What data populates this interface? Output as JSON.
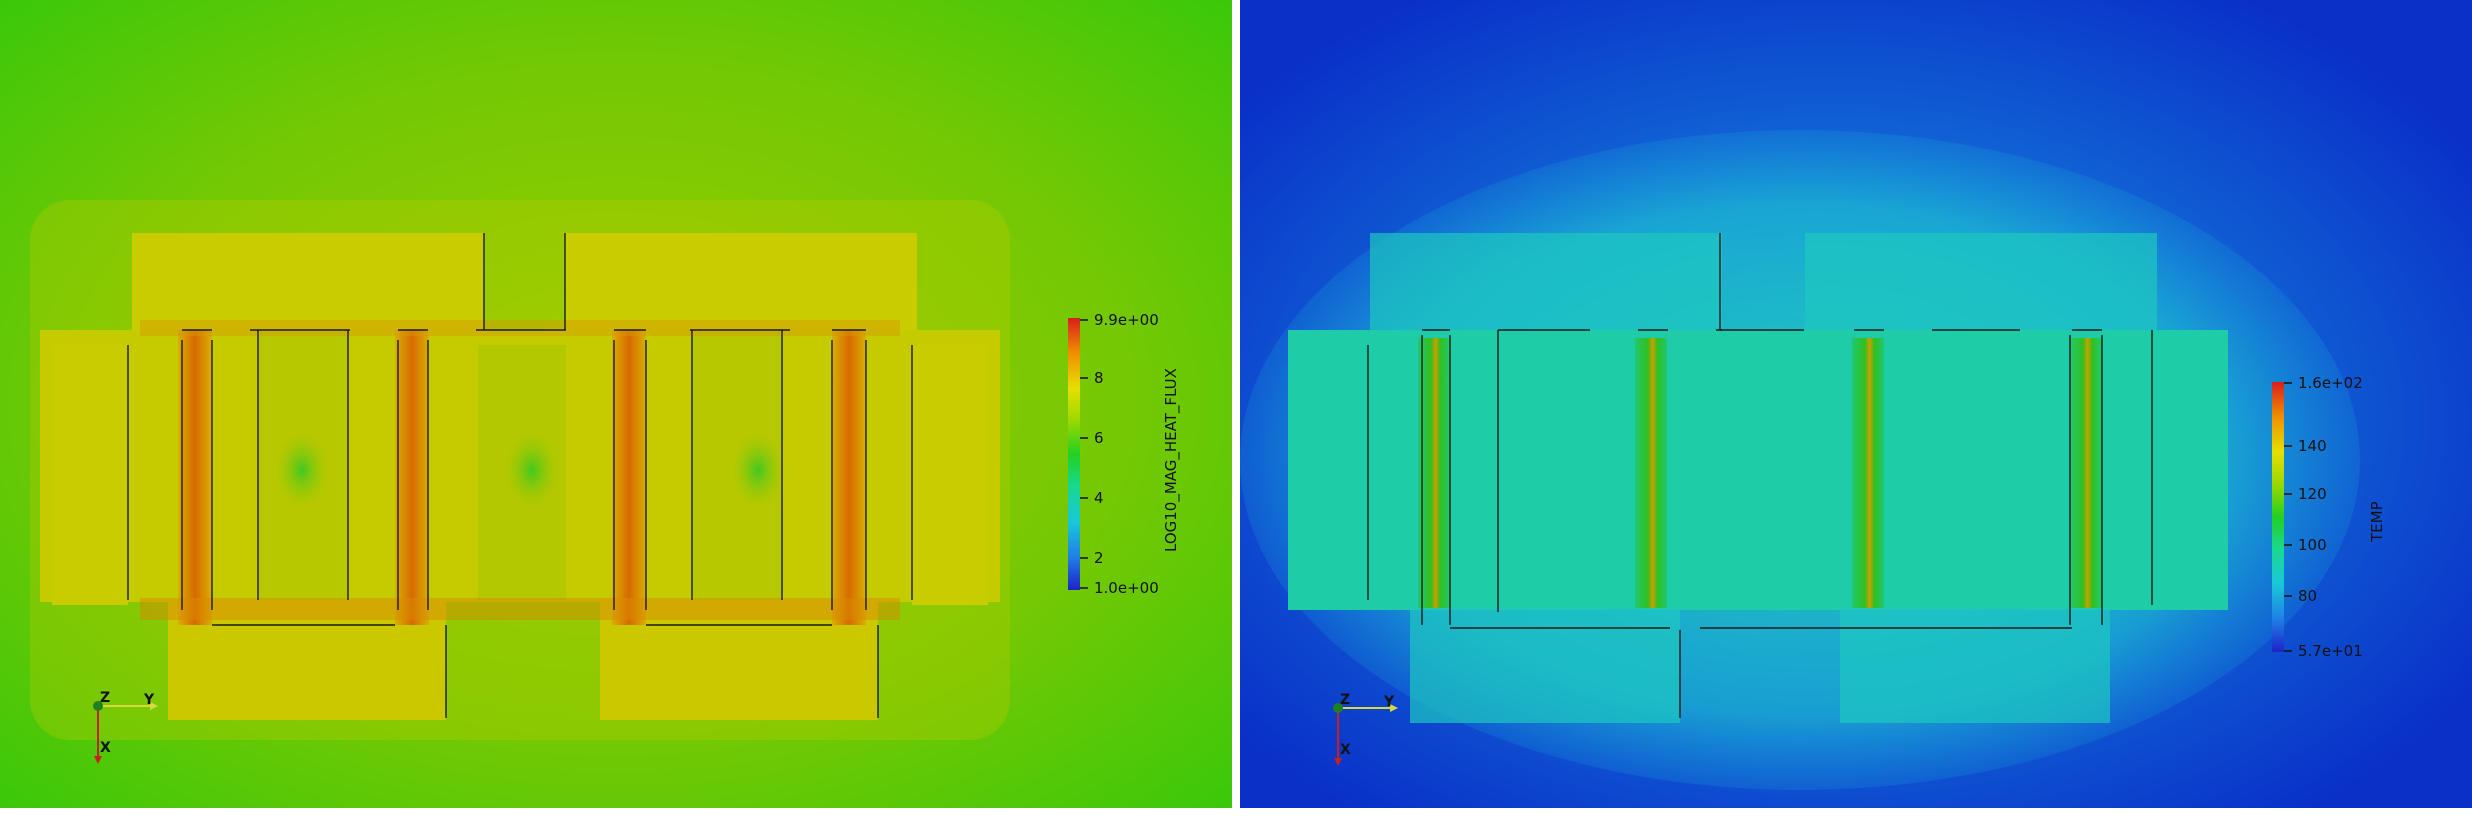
{
  "views": [
    {
      "name": "heat-flux-view",
      "colorbar": {
        "title": "LOG10_MAG_HEAT_FLUX",
        "max_label": "9.9e+00",
        "min_label": "1.0e+00",
        "ticks": [
          "8",
          "6",
          "4",
          "2"
        ],
        "range": [
          1.0,
          9.9
        ],
        "colormap": [
          "#1e22c8",
          "#1fa0e6",
          "#19d8c8",
          "#22d022",
          "#8ad800",
          "#e6e600",
          "#f0a000",
          "#e04000",
          "#c81e1e"
        ]
      },
      "background_color": "#5cc806"
    },
    {
      "name": "temperature-view",
      "colorbar": {
        "title": "TEMP",
        "max_label": "1.6e+02",
        "min_label": "5.7e+01",
        "ticks": [
          "140",
          "120",
          "100",
          "80"
        ],
        "range": [
          57,
          160
        ],
        "colormap": [
          "#1e22c8",
          "#1fa0e6",
          "#19d8c8",
          "#22d022",
          "#8ad800",
          "#e6e600",
          "#f0a000",
          "#e04000",
          "#c81e1e"
        ]
      },
      "background_color": "#0a34c8"
    }
  ],
  "orientation_axes": {
    "z": "Z",
    "y": "Y",
    "x": "X"
  }
}
